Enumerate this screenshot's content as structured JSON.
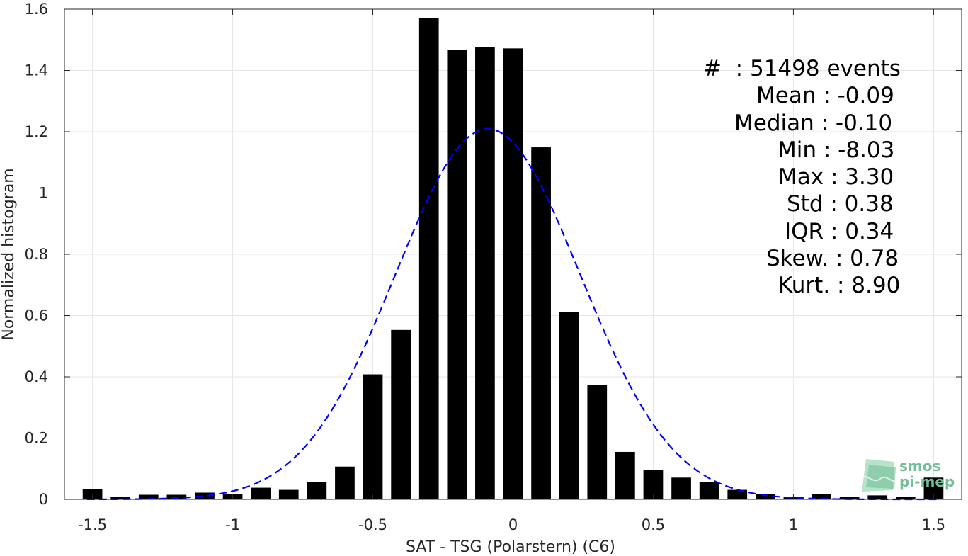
{
  "chart_data": {
    "type": "bar",
    "xlabel": "SAT - TSG (Polarstern) (C6)",
    "ylabel": "Normalized histogram",
    "xlim": [
      -1.6,
      1.6
    ],
    "ylim": [
      0,
      1.6
    ],
    "xticks": [
      -1.5,
      -1,
      -0.5,
      0,
      0.5,
      1,
      1.5
    ],
    "xtick_labels": [
      "-1.5",
      "-1",
      "-0.5",
      "0",
      "0.5",
      "1",
      "1.5"
    ],
    "yticks": [
      0,
      0.2,
      0.4,
      0.6,
      0.8,
      1,
      1.2,
      1.4,
      1.6
    ],
    "ytick_labels": [
      "0",
      "0.2",
      "0.4",
      "0.6",
      "0.8",
      "1",
      "1.2",
      "1.4",
      "1.6"
    ],
    "grid": true,
    "bar_width": 0.07,
    "bins": [
      {
        "x": -1.5,
        "y": 0.033
      },
      {
        "x": -1.4,
        "y": 0.007
      },
      {
        "x": -1.3,
        "y": 0.015
      },
      {
        "x": -1.2,
        "y": 0.015
      },
      {
        "x": -1.1,
        "y": 0.022
      },
      {
        "x": -1.0,
        "y": 0.018
      },
      {
        "x": -0.9,
        "y": 0.038
      },
      {
        "x": -0.8,
        "y": 0.031
      },
      {
        "x": -0.7,
        "y": 0.057
      },
      {
        "x": -0.6,
        "y": 0.107
      },
      {
        "x": -0.5,
        "y": 0.408
      },
      {
        "x": -0.4,
        "y": 0.553
      },
      {
        "x": -0.3,
        "y": 1.572
      },
      {
        "x": -0.2,
        "y": 1.467
      },
      {
        "x": -0.1,
        "y": 1.477
      },
      {
        "x": 0.0,
        "y": 1.472
      },
      {
        "x": 0.1,
        "y": 1.149
      },
      {
        "x": 0.2,
        "y": 0.611
      },
      {
        "x": 0.3,
        "y": 0.373
      },
      {
        "x": 0.4,
        "y": 0.155
      },
      {
        "x": 0.5,
        "y": 0.095
      },
      {
        "x": 0.6,
        "y": 0.071
      },
      {
        "x": 0.7,
        "y": 0.057
      },
      {
        "x": 0.8,
        "y": 0.031
      },
      {
        "x": 0.9,
        "y": 0.018
      },
      {
        "x": 1.0,
        "y": 0.009
      },
      {
        "x": 1.1,
        "y": 0.018
      },
      {
        "x": 1.2,
        "y": 0.009
      },
      {
        "x": 1.3,
        "y": 0.013
      },
      {
        "x": 1.4,
        "y": 0.009
      },
      {
        "x": 1.5,
        "y": 0.071
      }
    ],
    "gaussian_fit": {
      "mean": -0.09,
      "std": 0.33,
      "color": "#0000ff",
      "style": "dashed"
    },
    "bar_color": "#000000",
    "stats": [
      {
        "label": "#  : 51498 events"
      },
      {
        "label": "Mean : -0.09"
      },
      {
        "label": "Median : -0.10"
      },
      {
        "label": "Min : -8.03"
      },
      {
        "label": "Max : 3.30"
      },
      {
        "label": "Std : 0.38"
      },
      {
        "label": "IQR : 0.34"
      },
      {
        "label": "Skew. : 0.78"
      },
      {
        "label": "Kurt. : 8.90"
      }
    ]
  },
  "logo": {
    "line1": "smos",
    "line2": "pi-mep",
    "color": "#74bf98"
  }
}
